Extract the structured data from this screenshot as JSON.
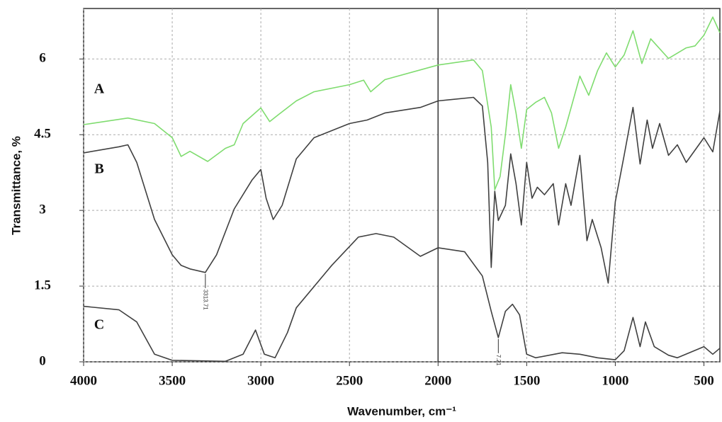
{
  "chart_data": {
    "type": "line",
    "x_label": "Wavenumber, cm⁻¹",
    "y_label": "Transmittance, %",
    "xlim": [
      4000,
      410
    ],
    "ylim": [
      0,
      7
    ],
    "xticks": [
      4000,
      3500,
      3000,
      2500,
      2000,
      1500,
      1000,
      500
    ],
    "yticks": [
      0,
      1.5,
      3,
      4.5,
      6
    ],
    "grid": true,
    "vline": 2000,
    "series": [
      {
        "name": "A",
        "color": "#7fdc6f",
        "x": [
          4000,
          3750,
          3600,
          3500,
          3450,
          3400,
          3300,
          3200,
          3150,
          3100,
          3000,
          2950,
          2900,
          2800,
          2700,
          2500,
          2420,
          2380,
          2300,
          2000,
          1800,
          1750,
          1700,
          1680,
          1650,
          1620,
          1590,
          1560,
          1530,
          1500,
          1450,
          1400,
          1360,
          1320,
          1280,
          1200,
          1150,
          1100,
          1050,
          1000,
          950,
          900,
          850,
          800,
          700,
          600,
          550,
          500,
          450,
          410
        ],
        "values": [
          4.7,
          4.83,
          4.72,
          4.44,
          4.07,
          4.17,
          3.97,
          4.23,
          4.3,
          4.72,
          5.03,
          4.76,
          4.9,
          5.17,
          5.35,
          5.49,
          5.58,
          5.35,
          5.59,
          5.88,
          5.98,
          5.77,
          4.65,
          3.41,
          3.67,
          4.5,
          5.49,
          4.93,
          4.23,
          5.0,
          5.14,
          5.24,
          4.93,
          4.23,
          4.65,
          5.66,
          5.28,
          5.77,
          6.12,
          5.84,
          6.08,
          6.56,
          5.91,
          6.4,
          6.01,
          6.22,
          6.26,
          6.47,
          6.83,
          6.52
        ]
      },
      {
        "name": "B",
        "color": "#404040",
        "x": [
          4000,
          3800,
          3750,
          3700,
          3600,
          3500,
          3450,
          3400,
          3313,
          3250,
          3150,
          3050,
          3000,
          2970,
          2930,
          2880,
          2800,
          2700,
          2500,
          2400,
          2300,
          2100,
          2000,
          1800,
          1750,
          1720,
          1700,
          1680,
          1660,
          1620,
          1590,
          1560,
          1530,
          1500,
          1470,
          1440,
          1400,
          1350,
          1320,
          1280,
          1250,
          1200,
          1160,
          1130,
          1080,
          1040,
          1000,
          950,
          900,
          860,
          820,
          790,
          750,
          700,
          650,
          600,
          500,
          450,
          410
        ],
        "values": [
          4.14,
          4.26,
          4.3,
          3.95,
          2.82,
          2.12,
          1.91,
          1.84,
          1.77,
          2.12,
          3.03,
          3.6,
          3.81,
          3.24,
          2.82,
          3.1,
          4.02,
          4.44,
          4.72,
          4.79,
          4.93,
          5.04,
          5.17,
          5.24,
          5.07,
          3.95,
          1.87,
          3.38,
          2.8,
          3.1,
          4.12,
          3.53,
          2.71,
          3.95,
          3.24,
          3.46,
          3.31,
          3.53,
          2.71,
          3.53,
          3.1,
          4.09,
          2.4,
          2.82,
          2.26,
          1.56,
          3.17,
          4.09,
          5.04,
          3.92,
          4.79,
          4.23,
          4.72,
          4.09,
          4.3,
          3.95,
          4.44,
          4.16,
          4.97
        ]
      },
      {
        "name": "C",
        "color": "#404040",
        "x": [
          4000,
          3800,
          3700,
          3600,
          3500,
          3200,
          3100,
          3030,
          2980,
          2920,
          2850,
          2800,
          2600,
          2450,
          2350,
          2250,
          2100,
          2000,
          1850,
          1750,
          1700,
          1660,
          1620,
          1580,
          1540,
          1500,
          1450,
          1300,
          1200,
          1100,
          1000,
          950,
          900,
          860,
          830,
          780,
          700,
          650,
          500,
          450,
          410
        ],
        "values": [
          1.1,
          1.03,
          0.79,
          0.15,
          0.03,
          0.01,
          0.15,
          0.63,
          0.15,
          0.08,
          0.58,
          1.07,
          1.91,
          2.47,
          2.54,
          2.47,
          2.09,
          2.26,
          2.18,
          1.7,
          1.0,
          0.48,
          1.0,
          1.14,
          0.93,
          0.15,
          0.08,
          0.18,
          0.15,
          0.08,
          0.04,
          0.22,
          0.88,
          0.3,
          0.79,
          0.3,
          0.13,
          0.08,
          0.3,
          0.15,
          0.27
        ]
      }
    ],
    "peak_labels": [
      {
        "label": "3313.71",
        "x": 3313,
        "y": 1.77
      },
      {
        "label": "7.21",
        "x": 1660,
        "y": 0.48
      }
    ]
  }
}
